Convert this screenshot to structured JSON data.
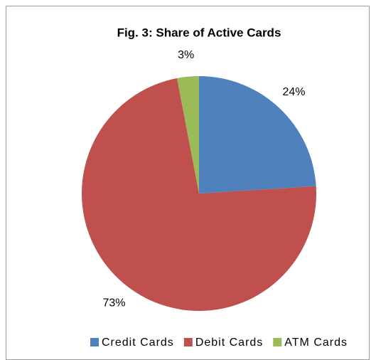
{
  "chart_data": {
    "type": "pie",
    "title": "Fig. 3: Share of Active Cards",
    "categories": [
      "Credit Cards",
      "Debit Cards",
      "ATM Cards"
    ],
    "values": [
      24,
      73,
      3
    ],
    "value_labels": [
      "24%",
      "73%",
      "3%"
    ],
    "colors": [
      "#4f81bd",
      "#c0504d",
      "#9bbb59"
    ],
    "legend": "bottom"
  }
}
